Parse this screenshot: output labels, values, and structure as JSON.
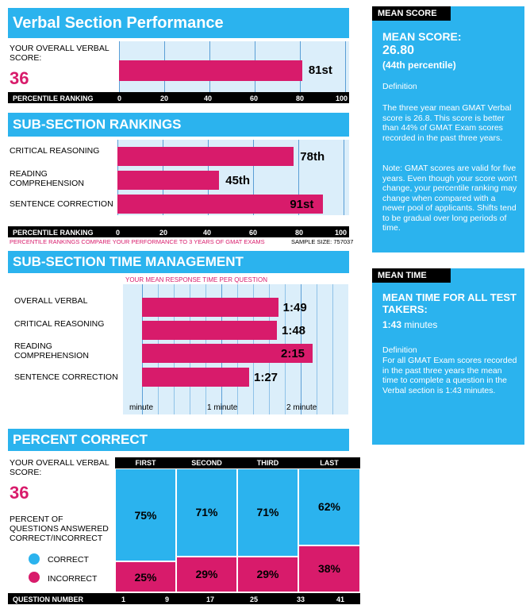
{
  "verbal": {
    "title": "Verbal Section Performance",
    "score_label": "YOUR OVERALL VERBAL SCORE:",
    "score": "36",
    "percentile": 81,
    "percentile_label": "81st",
    "axis_title": "PERCENTILE RANKING",
    "ticks": [
      "0",
      "20",
      "40",
      "60",
      "80",
      "100"
    ]
  },
  "subsection": {
    "title": "SUB-SECTION RANKINGS",
    "rows": [
      {
        "label": "CRITICAL REASONING",
        "value": 78,
        "value_label": "78th"
      },
      {
        "label": "READING COMPREHENSION",
        "value": 45,
        "value_label": "45th"
      },
      {
        "label": "SENTENCE CORRECTION",
        "value": 91,
        "value_label": "91st"
      }
    ],
    "axis_title": "PERCENTILE RANKING",
    "ticks": [
      "0",
      "20",
      "40",
      "60",
      "80",
      "100"
    ],
    "footnote": "PERCENTILE RANKINGS COMPARE YOUR PERFORMANCE TO 3 YEARS OF GMAT EXAMS",
    "sample_size": "SAMPLE SIZE: 757037"
  },
  "time": {
    "title": "SUB-SECTION TIME MANAGEMENT",
    "subtitle": "YOUR MEAN RESPONSE TIME PER QUESTION",
    "rows": [
      {
        "label": "OVERALL VERBAL",
        "seconds": 109,
        "value_label": "1:49"
      },
      {
        "label": "CRITICAL REASONING",
        "seconds": 108,
        "value_label": "1:48"
      },
      {
        "label": "READING COMPREHENSION",
        "seconds": 135,
        "value_label": "2:15"
      },
      {
        "label": "SENTENCE CORRECTION",
        "seconds": 87,
        "value_label": "1:27"
      }
    ],
    "ticks": [
      "minute",
      "1 minute",
      "2 minute"
    ]
  },
  "percent_correct": {
    "title": "PERCENT CORRECT",
    "score_label": "YOUR OVERALL VERBAL SCORE:",
    "score": "36",
    "desc": "PERCENT OF QUESTIONS ANSWERED CORRECT/INCORRECT",
    "legend_correct": "CORRECT",
    "legend_incorrect": "INCORRECT",
    "columns": [
      {
        "name": "FIRST",
        "correct": 75,
        "correct_label": "75%",
        "incorrect_label": "25%"
      },
      {
        "name": "SECOND",
        "correct": 71,
        "correct_label": "71%",
        "incorrect_label": "29%"
      },
      {
        "name": "THIRD",
        "correct": 71,
        "correct_label": "71%",
        "incorrect_label": "29%"
      },
      {
        "name": "LAST",
        "correct": 62,
        "correct_label": "62%",
        "incorrect_label": "38%"
      }
    ],
    "axis_title": "QUESTION NUMBER",
    "ticks": [
      "1",
      "9",
      "17",
      "25",
      "33",
      "41"
    ]
  },
  "mean_score": {
    "tag": "MEAN SCORE",
    "heading": "MEAN SCORE:",
    "value": "26.80",
    "percentile": "(44th percentile)",
    "def_title": "Definition",
    "def_text": "The three year mean GMAT Verbal  score is 26.8. This score is better than 44% of GMAT Exam scores recorded in the past three years.",
    "note": "Note:  GMAT scores are valid for five years. Even though your score won't change, your percentile ranking may change when compared with a newer pool of applicants.  Shifts tend to be gradual over long periods of time."
  },
  "mean_time": {
    "tag": "MEAN TIME",
    "heading": "MEAN TIME FOR ALL TEST TAKERS:",
    "value": "1:43",
    "unit": "minutes",
    "def_title": "Definition",
    "def_text": "For all GMAT Exam scores recorded in the past three years the mean time to complete a question in the Verbal section is 1:43 minutes."
  },
  "colors": {
    "accent": "#2bb3ee",
    "pink": "#d81b6b",
    "grid": "#dbeefa"
  }
}
